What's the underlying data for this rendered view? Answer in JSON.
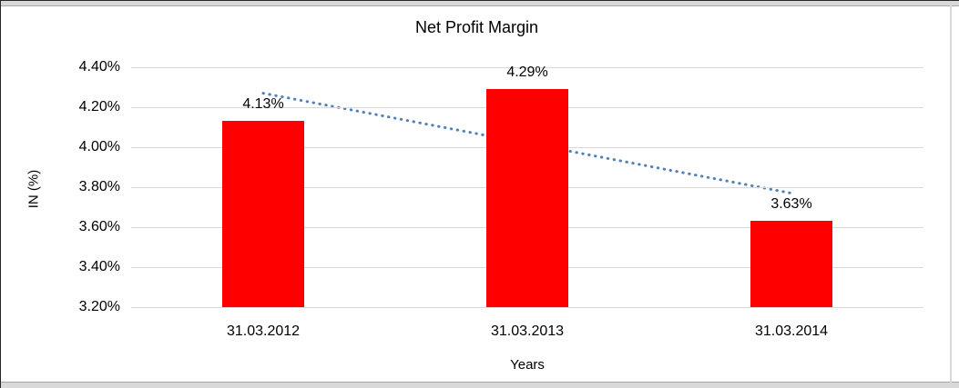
{
  "chart_data": {
    "type": "bar",
    "title": "Net Profit Margin",
    "xlabel": "Years",
    "ylabel": "IN (%)",
    "categories": [
      "31.03.2012",
      "31.03.2013",
      "31.03.2014"
    ],
    "values": [
      4.13,
      4.29,
      3.63
    ],
    "value_labels": [
      "4.13%",
      "4.29%",
      "3.63%"
    ],
    "ylim": [
      3.2,
      4.4
    ],
    "yticks": {
      "values": [
        4.4,
        4.2,
        4.0,
        3.8,
        3.6,
        3.4,
        3.2
      ],
      "labels": [
        "4.40%",
        "4.20%",
        "4.00%",
        "3.80%",
        "3.60%",
        "3.40%",
        "3.20%"
      ]
    },
    "grid": "horizontal",
    "legend": "none",
    "bar_color": "#FF0000",
    "gridline_color": "#D9D9D9",
    "trendline": {
      "type": "linear",
      "style": "dotted",
      "color": "#4F81BD",
      "start_value": 4.27,
      "end_value": 3.77
    }
  }
}
